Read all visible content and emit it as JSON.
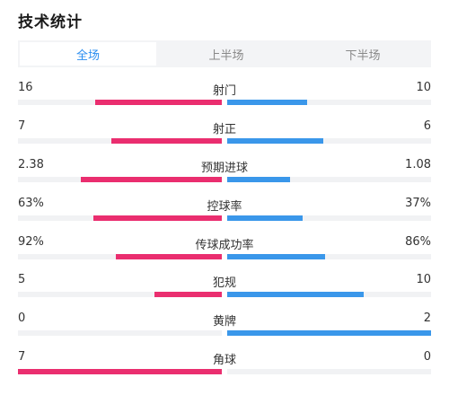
{
  "title": "技术统计",
  "tabs": [
    "全场",
    "上半场",
    "下半场"
  ],
  "active_tab": 0,
  "colors": {
    "home": "#ea2e6f",
    "away": "#3a97ea",
    "accent": "#2a8df0"
  },
  "stats": [
    {
      "label": "射门",
      "home": "16",
      "away": "10",
      "home_fill": 0.62,
      "away_fill": 0.39
    },
    {
      "label": "射正",
      "home": "7",
      "away": "6",
      "home_fill": 0.54,
      "away_fill": 0.47
    },
    {
      "label": "预期进球",
      "home": "2.38",
      "away": "1.08",
      "home_fill": 0.69,
      "away_fill": 0.31
    },
    {
      "label": "控球率",
      "home": "63%",
      "away": "37%",
      "home_fill": 0.63,
      "away_fill": 0.37
    },
    {
      "label": "传球成功率",
      "home": "92%",
      "away": "86%",
      "home_fill": 0.52,
      "away_fill": 0.48
    },
    {
      "label": "犯规",
      "home": "5",
      "away": "10",
      "home_fill": 0.33,
      "away_fill": 0.67
    },
    {
      "label": "黄牌",
      "home": "0",
      "away": "2",
      "home_fill": 0.0,
      "away_fill": 1.0
    },
    {
      "label": "角球",
      "home": "7",
      "away": "0",
      "home_fill": 1.0,
      "away_fill": 0.0
    }
  ]
}
